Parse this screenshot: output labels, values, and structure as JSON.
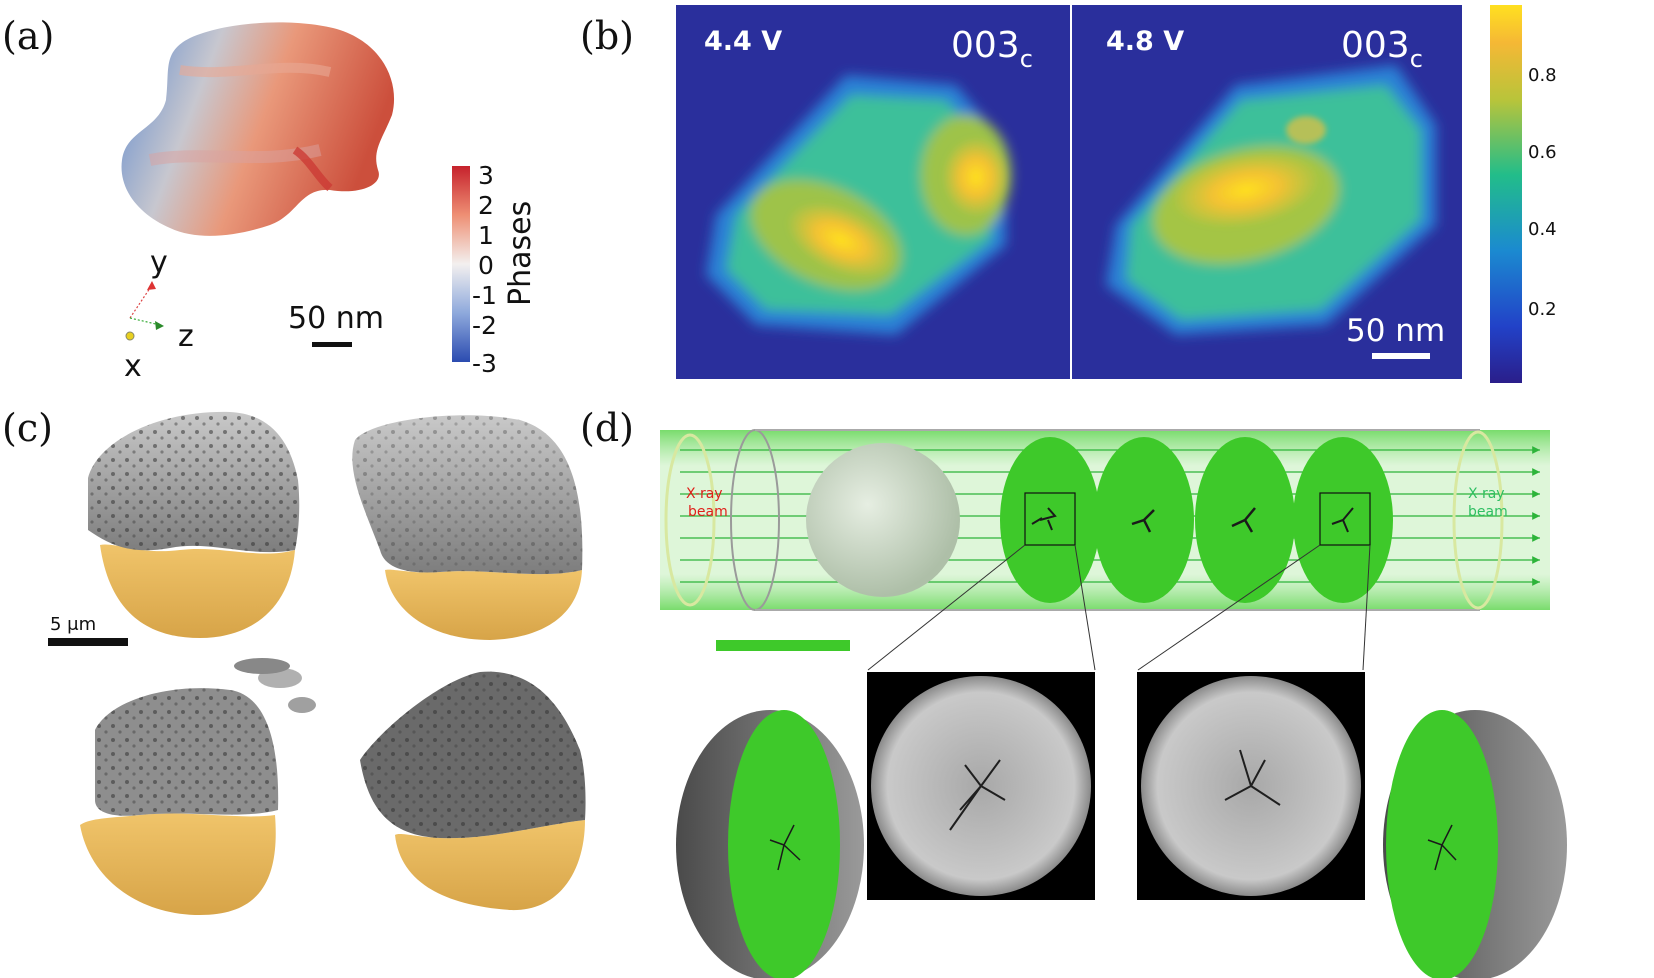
{
  "panels": {
    "a": {
      "label": "(a)",
      "axes": {
        "y": "y",
        "z": "z",
        "x": "x"
      },
      "scale_bar": "50 nm",
      "colorbar": {
        "title": "Phases",
        "ticks": [
          "3",
          "2",
          "1",
          "0",
          "-1",
          "-2",
          "-3"
        ]
      }
    },
    "b": {
      "label": "(b)",
      "left_voltage": "4.4 V",
      "right_voltage": "4.8 V",
      "reflection": "003",
      "reflection_sub": "c",
      "scale_bar": "50 nm",
      "colorbar_ticks": [
        "0.8",
        "0.6",
        "0.4",
        "0.2"
      ]
    },
    "c": {
      "label": "(c)",
      "scale_bar": "5 μm"
    },
    "d": {
      "label": "(d)",
      "beam_in_line1": "X-ray",
      "beam_in_line2": "beam",
      "beam_out_line1": "X-ray",
      "beam_out_line2": "beam"
    }
  },
  "colors": {
    "phase_positive": "#d93a2e",
    "phase_negative": "#3a5fc4",
    "viridis_low": "#2a1e8a",
    "viridis_high": "#ffe020",
    "slice_green": "#3ec92a",
    "particle_gold": "#e2b55a",
    "beam_in_text": "#e0201a",
    "beam_out_text": "#2fbf62"
  }
}
